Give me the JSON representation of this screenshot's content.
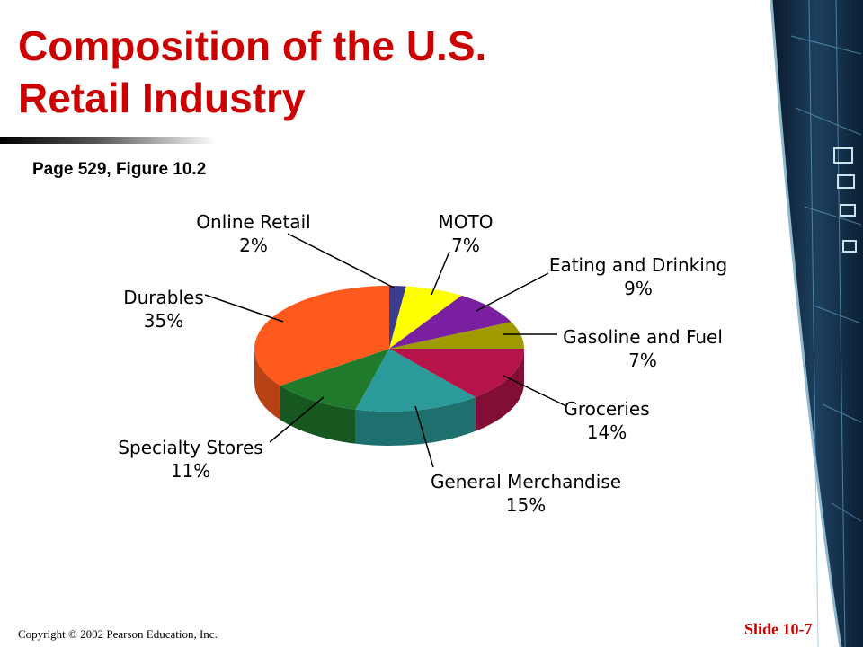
{
  "slide": {
    "title_line1": "Composition of the U.S.",
    "title_line2": "Retail Industry",
    "subtitle": "Page 529, Figure 10.2",
    "copyright": "Copyright © 2002 Pearson Education, Inc.",
    "slide_number": "Slide 10-7"
  },
  "colors": {
    "title": "#cc0000",
    "online_retail": "#3a3d8f",
    "moto": "#ffff00",
    "eating_drinking": "#7a1fa0",
    "gasoline_fuel": "#9e9a00",
    "groceries": "#b5134a",
    "general_merchandise": "#2a9b9a",
    "specialty_stores": "#1f7a2c",
    "durables": "#ff5a1e"
  },
  "chart_data": {
    "type": "pie",
    "title": "",
    "categories": [
      "Online Retail",
      "MOTO",
      "Eating and Drinking",
      "Gasoline and Fuel",
      "Groceries",
      "General Merchandise",
      "Specialty Stores",
      "Durables"
    ],
    "values": [
      2,
      7,
      9,
      7,
      14,
      15,
      11,
      35
    ],
    "value_labels": [
      "2%",
      "7%",
      "9%",
      "7%",
      "14%",
      "15%",
      "11%",
      "35%"
    ],
    "colors": [
      "#3a3d8f",
      "#ffff00",
      "#7a1fa0",
      "#9e9a00",
      "#b5134a",
      "#2a9b9a",
      "#1f7a2c",
      "#ff5a1e"
    ],
    "style": "3d",
    "legend": "none"
  }
}
